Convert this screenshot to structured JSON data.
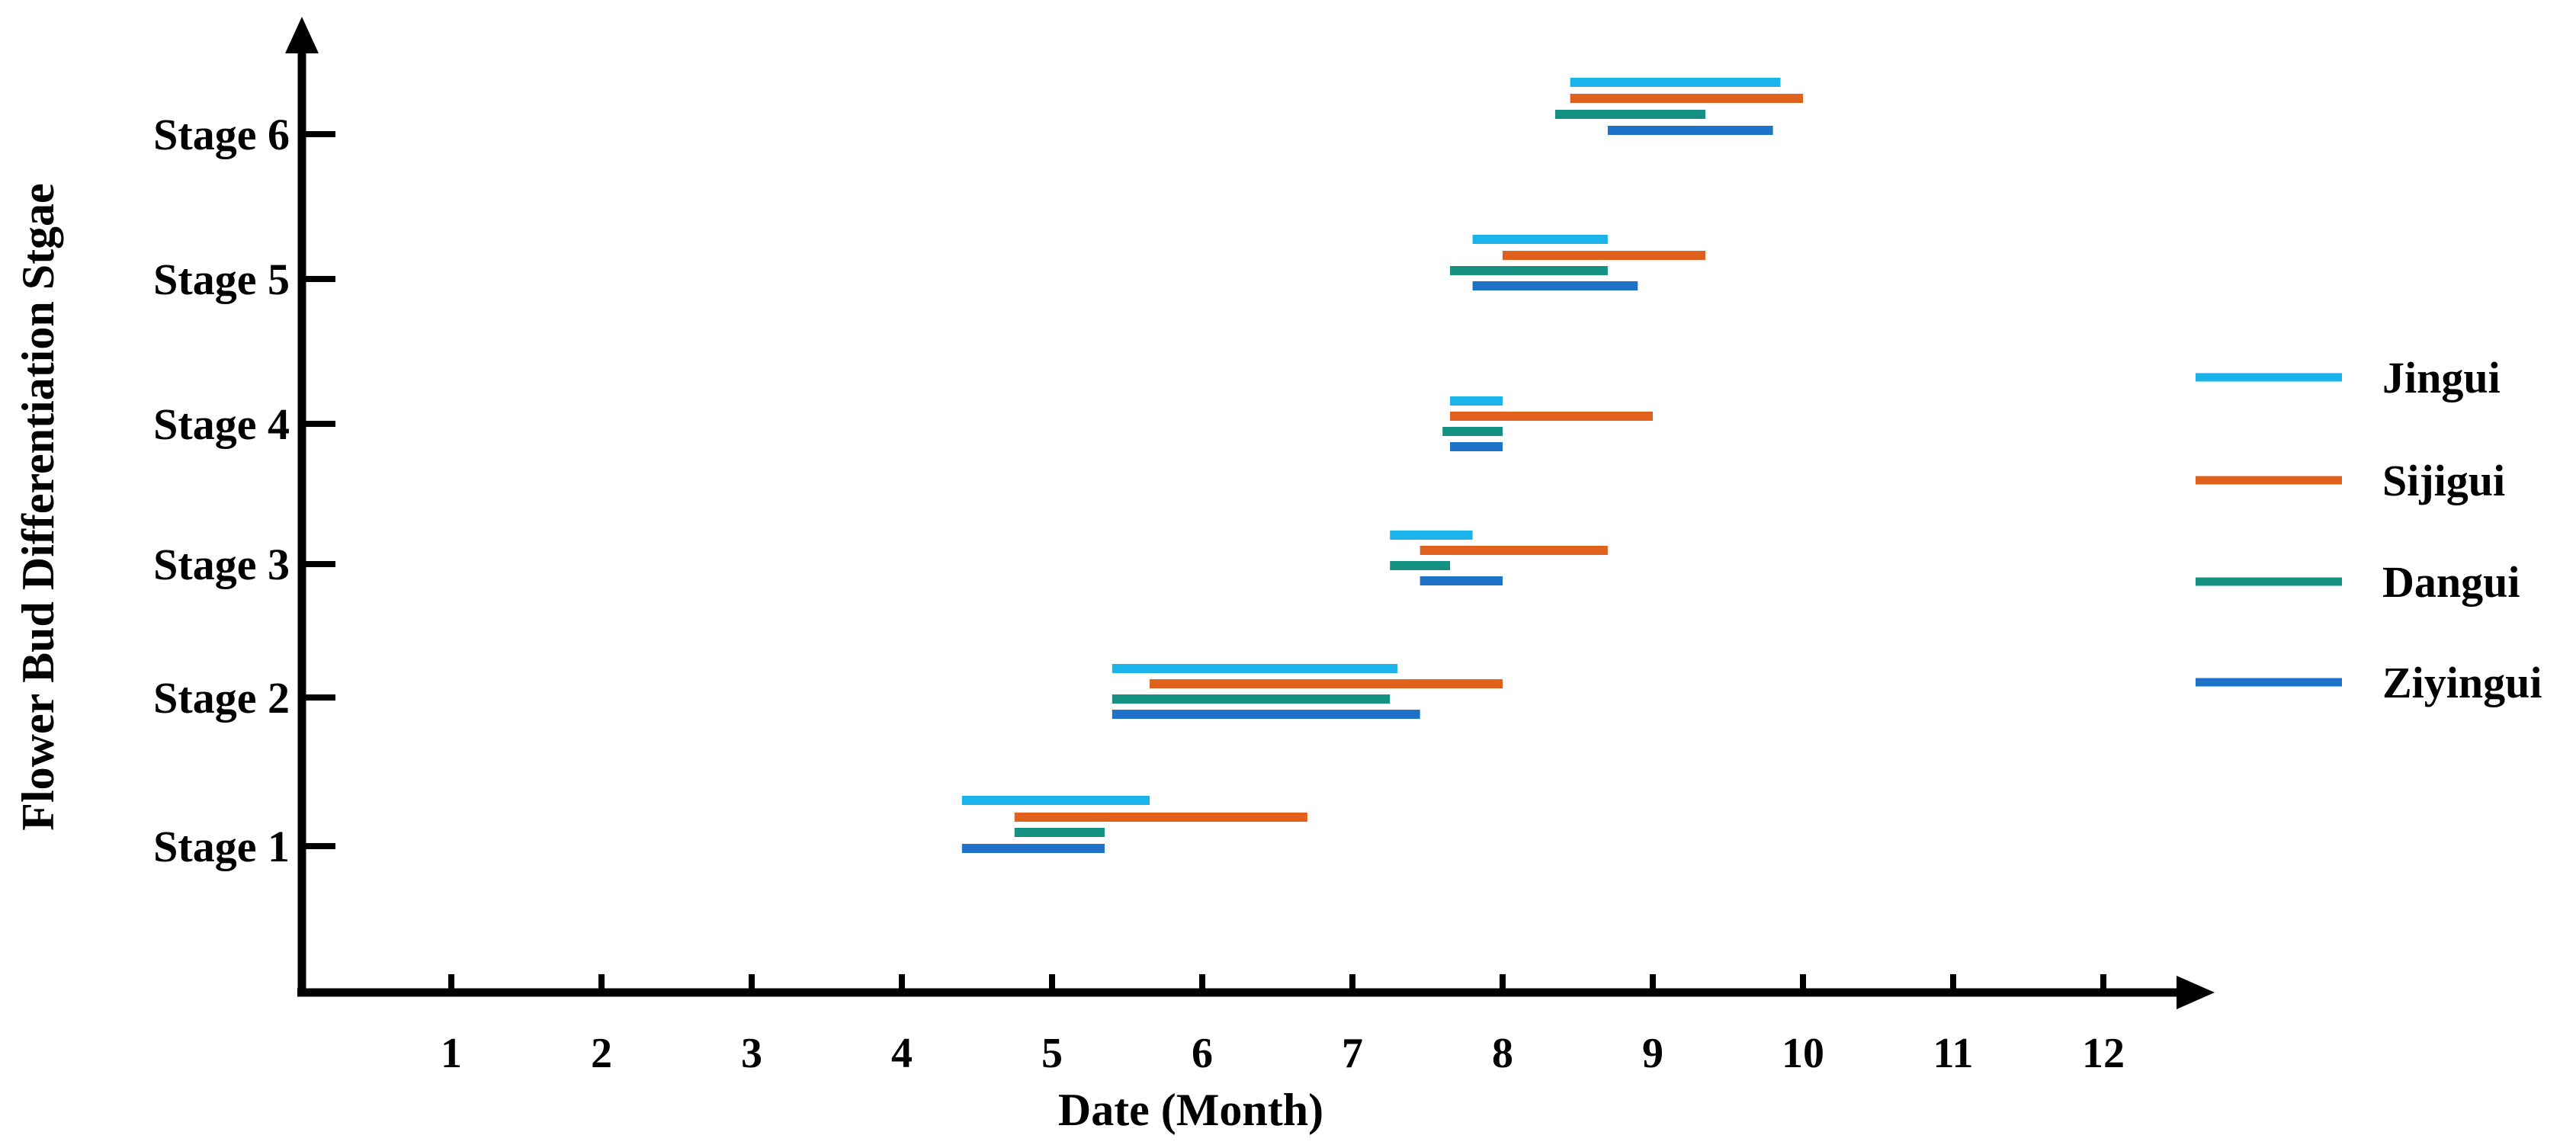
{
  "chart_data": {
    "type": "gantt",
    "xlabel": "Date (Month)",
    "ylabel": "Flower Bud Differentiation Stgae",
    "xlim": [
      0,
      12.8
    ],
    "x_ticks": [
      "1",
      "2",
      "3",
      "4",
      "5",
      "6",
      "7",
      "8",
      "9",
      "10",
      "11",
      "12"
    ],
    "stages": [
      "Stage 1",
      "Stage 2",
      "Stage 3",
      "Stage 4",
      "Stage 5",
      "Stage 6"
    ],
    "legend_position": "right",
    "series": [
      {
        "name": "Jingui",
        "color": "#1BB4EA",
        "ranges": [
          [
            4.4,
            5.65
          ],
          [
            5.4,
            7.3
          ],
          [
            7.25,
            7.8
          ],
          [
            7.65,
            8.0
          ],
          [
            7.8,
            8.7
          ],
          [
            8.45,
            9.85
          ]
        ]
      },
      {
        "name": "Sijigui",
        "color": "#E0611C",
        "ranges": [
          [
            4.75,
            6.7
          ],
          [
            5.65,
            8.0
          ],
          [
            7.45,
            8.7
          ],
          [
            7.65,
            9.0
          ],
          [
            8.0,
            9.35
          ],
          [
            8.45,
            10.0
          ]
        ]
      },
      {
        "name": "Dangui",
        "color": "#159184",
        "ranges": [
          [
            4.75,
            5.35
          ],
          [
            5.4,
            7.25
          ],
          [
            7.25,
            7.65
          ],
          [
            7.6,
            8.0
          ],
          [
            7.65,
            8.7
          ],
          [
            8.35,
            9.35
          ]
        ]
      },
      {
        "name": "Ziyingui",
        "color": "#1E73C8",
        "ranges": [
          [
            4.4,
            5.35
          ],
          [
            5.4,
            7.45
          ],
          [
            7.45,
            8.0
          ],
          [
            7.65,
            8.0
          ],
          [
            7.8,
            8.9
          ],
          [
            8.7,
            9.8
          ]
        ]
      }
    ]
  }
}
